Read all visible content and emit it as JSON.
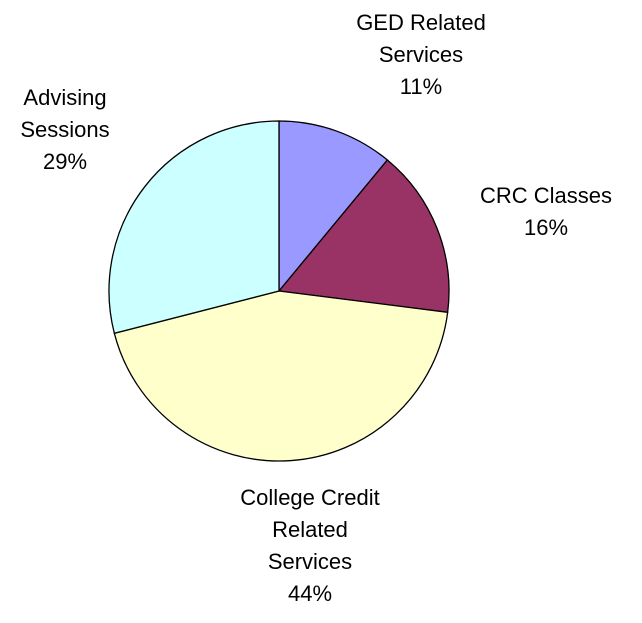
{
  "chart_data": {
    "type": "pie",
    "categories": [
      "GED Related Services",
      "CRC Classes",
      "College Credit Related Services",
      "Advising Sessions"
    ],
    "values": [
      11,
      16,
      44,
      29
    ],
    "value_labels": [
      "11%",
      "16%",
      "44%",
      "29%"
    ],
    "colors": [
      "#9999ff",
      "#993366",
      "#ffffcc",
      "#ccffff"
    ]
  }
}
